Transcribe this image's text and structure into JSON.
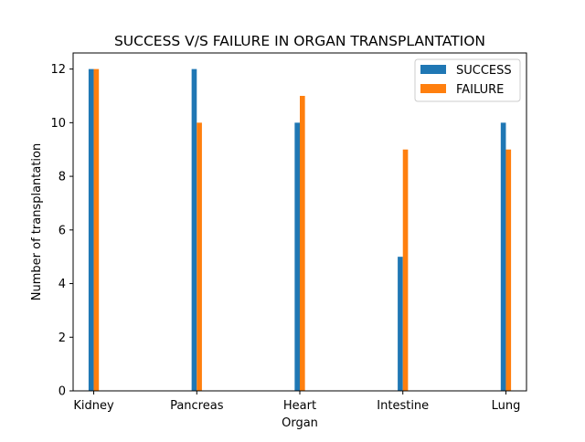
{
  "chart_data": {
    "type": "bar",
    "title": "SUCCESS V/S FAILURE IN ORGAN TRANSPLANTATION",
    "xlabel": "Organ",
    "ylabel": "Number of transplantation",
    "categories": [
      "Kidney",
      "Pancreas",
      "Heart",
      "Intestine",
      "Lung"
    ],
    "series": [
      {
        "name": "SUCCESS",
        "color": "#1f77b4",
        "values": [
          12,
          12,
          10,
          5,
          10
        ]
      },
      {
        "name": "FAILURE",
        "color": "#ff7f0e",
        "values": [
          12,
          10,
          11,
          9,
          9
        ]
      }
    ],
    "ylim": [
      0,
      12.6
    ],
    "yticks": [
      "0",
      "2",
      "4",
      "6",
      "8",
      "10",
      "12"
    ],
    "grid": false,
    "legend_position": "top-right"
  }
}
